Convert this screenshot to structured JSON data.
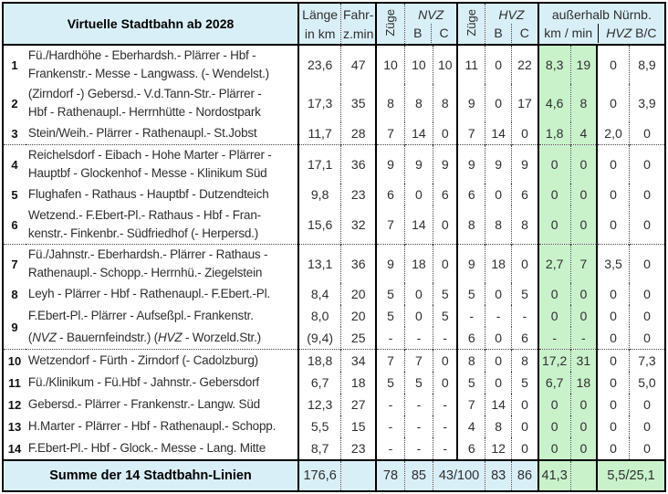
{
  "title": "Virtuelle Stadtbahn ab 2028",
  "colors": {
    "header_blue": "#d9eff7",
    "outside_green": "#c9f2cb",
    "border": "#000000",
    "text": "#2e2e2e"
  },
  "header": {
    "laenge_1": "Länge",
    "laenge_2": "in km",
    "fahr_1": "Fahr-",
    "fahr_2": "z.min",
    "zuege": "Züge",
    "nvz": "NVZ",
    "hvz": "HVZ",
    "b": "B",
    "c": "C",
    "outside_title": "außerhalb Nürnb.",
    "outside_km_min": "km / min",
    "outside_hvz": "HVZ",
    "outside_bc": "B/C"
  },
  "columns": [
    "lange",
    "fahr",
    "zn",
    "nb",
    "nc",
    "zh",
    "hb",
    "hc",
    "km",
    "min",
    "ob",
    "oc"
  ],
  "rows": [
    {
      "num": "1",
      "route_lines": [
        "Fü./Hardhöhe - Eberhardsh.- Plärrer - Hbf -",
        "Frankenstr.- Messe - Langwass. (- Wendelst.)"
      ],
      "values": [
        "23,6",
        "47",
        "10",
        "10",
        "10",
        "11",
        "0",
        "22",
        "8,3",
        "19",
        "0",
        "8,9"
      ]
    },
    {
      "num": "2",
      "route_lines": [
        "(Zirndorf -) Gebersd.- V.d.Tann-Str.- Plärrer -",
        "Hbf - Rathenaupl.- Herrnhütte - Nordostpark"
      ],
      "values": [
        "17,3",
        "35",
        "8",
        "8",
        "8",
        "9",
        "0",
        "17",
        "4,6",
        "8",
        "0",
        "3,9"
      ]
    },
    {
      "num": "3",
      "route_lines": [
        "Stein/Weih.- Plärrer - Rathenaupl.- St.Jobst"
      ],
      "values": [
        "11,7",
        "28",
        "7",
        "14",
        "0",
        "7",
        "14",
        "0",
        "1,8",
        "4",
        "2,0",
        "0"
      ]
    },
    {
      "num": "4",
      "group_start": true,
      "route_lines": [
        "Reichelsdorf - Eibach - Hohe Marter - Plärrer -",
        "Hauptbf - Glockenhof - Messe - Klinikum Süd"
      ],
      "values": [
        "17,1",
        "36",
        "9",
        "9",
        "9",
        "9",
        "9",
        "9",
        "0",
        "0",
        "0",
        "0"
      ]
    },
    {
      "num": "5",
      "route_lines": [
        "Flughafen - Rathaus - Hauptbf - Dutzendteich"
      ],
      "values": [
        "9,8",
        "23",
        "6",
        "0",
        "6",
        "6",
        "0",
        "6",
        "0",
        "0",
        "0",
        "0"
      ]
    },
    {
      "num": "6",
      "route_lines": [
        "Wetzend.- F.Ebert-Pl.- Rathaus - Hbf - Fran-",
        "kenstr.- Finkenbr.- Südfriedhof (- Herpersd.)"
      ],
      "values": [
        "15,6",
        "32",
        "7",
        "14",
        "0",
        "8",
        "8",
        "8",
        "0",
        "0",
        "0",
        "0"
      ]
    },
    {
      "num": "7",
      "group_start": true,
      "route_lines": [
        "Fü./Jahnstr.- Eberhardsh.- Plärrer - Rathaus -",
        "Rathenaupl.- Schopp.- Herrnhü.- Ziegelstein"
      ],
      "values": [
        "13,1",
        "36",
        "9",
        "18",
        "0",
        "9",
        "18",
        "0",
        "2,7",
        "7",
        "3,5",
        "0"
      ]
    },
    {
      "num": "8",
      "route_lines": [
        "Leyh - Plärrer - Hbf - Rathenaupl.- F.Ebert.-Pl."
      ],
      "values": [
        "8,4",
        "20",
        "5",
        "0",
        "5",
        "5",
        "0",
        "5",
        "0",
        "0",
        "0",
        "0"
      ]
    },
    {
      "num": "9",
      "rowspan": 2,
      "route_lines": [
        "F.Ebert-Pl.- Plärrer - Aufseßpl.- Frankenstr."
      ],
      "values": [
        "8,0",
        "20",
        "5",
        "0",
        "5",
        "-",
        "-",
        "-",
        "0",
        "0",
        "0",
        "0"
      ]
    },
    {
      "continuation": true,
      "route_lines": [
        "(NVZ - Bauernfeindstr.) (HVZ - Worzeld.Str.)"
      ],
      "values": [
        "(9,4)",
        "25",
        "-",
        "-",
        "-",
        "6",
        "0",
        "6",
        "-",
        "-",
        "0",
        "0"
      ]
    },
    {
      "num": "10",
      "group_start": true,
      "route_lines": [
        "Wetzendorf - Fürth - Zirndorf (- Cadolzburg)"
      ],
      "values": [
        "18,8",
        "34",
        "7",
        "7",
        "0",
        "8",
        "0",
        "8",
        "17,2",
        "31",
        "0",
        "7,3"
      ]
    },
    {
      "num": "11",
      "route_lines": [
        "Fü./Klinikum - Fü.Hbf - Jahnstr.- Gebersdorf"
      ],
      "values": [
        "6,7",
        "18",
        "5",
        "5",
        "0",
        "5",
        "0",
        "5",
        "6,7",
        "18",
        "0",
        "5,0"
      ]
    },
    {
      "num": "12",
      "route_lines": [
        "Gebersd.- Plärrer - Frankenstr.- Langw. Süd"
      ],
      "values": [
        "12,3",
        "27",
        "-",
        "-",
        "-",
        "7",
        "14",
        "0",
        "0",
        "0",
        "0",
        "0"
      ]
    },
    {
      "num": "13",
      "route_lines": [
        "H.Marter - Plärrer - Hbf - Rathenaupl.- Schopp."
      ],
      "values": [
        "5,5",
        "15",
        "-",
        "-",
        "-",
        "4",
        "8",
        "0",
        "0",
        "0",
        "0",
        "0"
      ]
    },
    {
      "num": "14",
      "route_lines": [
        "F.Ebert-Pl.- Hbf - Glock.- Messe - Lang. Mitte"
      ],
      "values": [
        "8,7",
        "23",
        "-",
        "-",
        "-",
        "6",
        "12",
        "0",
        "0",
        "0",
        "0",
        "0"
      ]
    }
  ],
  "summary": {
    "label": "Summe der 14 Stadtbahn-Linien",
    "laenge": "176,6",
    "fahrzeit": "",
    "zuege_nvz": "78",
    "nvz_b": "85",
    "nvz_c_hvz_zuege": "43/100",
    "hvz_b": "83",
    "hvz_c": "86",
    "km_outside": "41,3",
    "min_outside": "",
    "hvz_bc_outside": "5,5/25,1"
  }
}
